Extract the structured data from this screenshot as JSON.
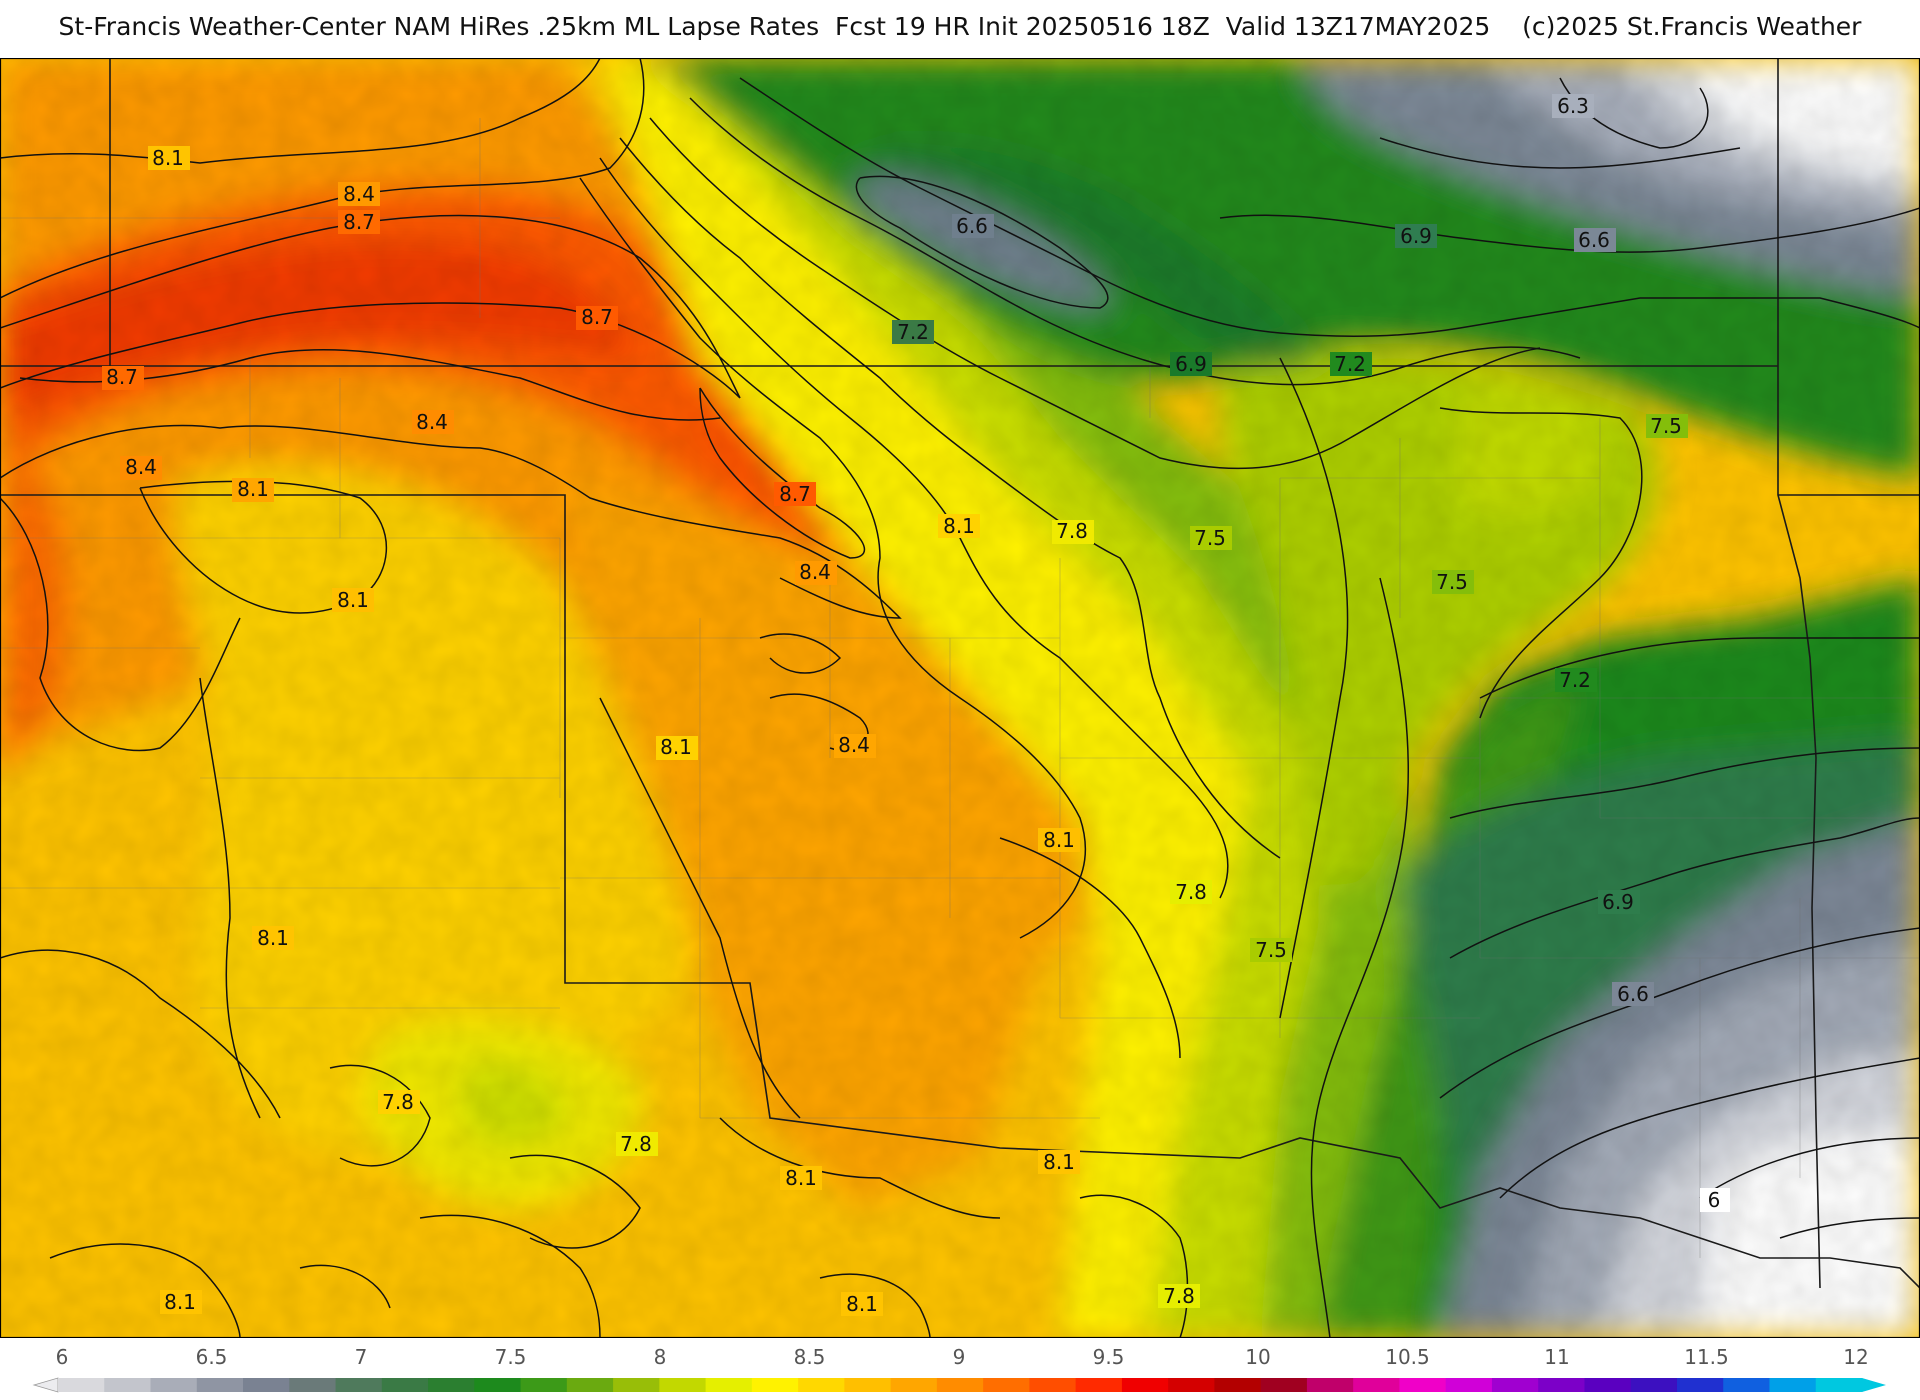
{
  "title": "St-Francis Weather-Center NAM HiRes .25km ML Lapse Rates  Fcst 19 HR Init 20250516 18Z  Valid 13Z17MAY2025    (c)2025 St.Francis Weather",
  "colors": {
    "background": "#ffffff",
    "contour_line": "#111111",
    "state_border": "#1a1a1a",
    "county_border": "#6e6e6e"
  },
  "map": {
    "field": "ML Lapse Rates",
    "units_hint": "C/km",
    "contour_labels": [
      {
        "text": "8.1"
      },
      {
        "text": "8.4"
      },
      {
        "text": "8.7"
      },
      {
        "text": "8.7"
      },
      {
        "text": "8.7"
      },
      {
        "text": "8.4"
      },
      {
        "text": "8.4"
      },
      {
        "text": "8.1"
      },
      {
        "text": "8.1"
      },
      {
        "text": "8.7"
      },
      {
        "text": "8.4"
      },
      {
        "text": "8.1"
      },
      {
        "text": "7.8"
      },
      {
        "text": "7.5"
      },
      {
        "text": "8.1"
      },
      {
        "text": "8.4"
      },
      {
        "text": "8.1"
      },
      {
        "text": "7.8"
      },
      {
        "text": "7.5"
      },
      {
        "text": "8.1"
      },
      {
        "text": "7.8"
      },
      {
        "text": "7.8"
      },
      {
        "text": "8.1"
      },
      {
        "text": "8.1"
      },
      {
        "text": "8.1"
      },
      {
        "text": "8.1"
      },
      {
        "text": "7.8"
      },
      {
        "text": "7.5"
      },
      {
        "text": "7.2"
      },
      {
        "text": "7.5"
      },
      {
        "text": "6.9"
      },
      {
        "text": "6.6"
      },
      {
        "text": "6"
      },
      {
        "text": "6.6"
      },
      {
        "text": "7.2"
      },
      {
        "text": "6.9"
      },
      {
        "text": "7.2"
      },
      {
        "text": "6.9"
      },
      {
        "text": "6.6"
      },
      {
        "text": "6.3"
      }
    ]
  },
  "colorbar": {
    "ticks": [
      "6",
      "6.5",
      "7",
      "7.5",
      "8",
      "8.5",
      "9",
      "9.5",
      "10",
      "10.5",
      "11",
      "11.5",
      "12"
    ],
    "colors": [
      "#d9d9dd",
      "#c3c5cc",
      "#a9adb8",
      "#8f95a3",
      "#7a8292",
      "#6a7a79",
      "#4f7a5c",
      "#3a7a45",
      "#2b7f30",
      "#1d8a1d",
      "#3c9a18",
      "#6aaa10",
      "#98be08",
      "#c2d800",
      "#e5ef00",
      "#fff200",
      "#ffd800",
      "#ffbf00",
      "#ffa600",
      "#ff8c00",
      "#ff6e00",
      "#ff4e00",
      "#ff2a00",
      "#f00000",
      "#d40000",
      "#b30000",
      "#a00020",
      "#c0006a",
      "#e0009a",
      "#f000c8",
      "#d000d8",
      "#a000d0",
      "#7c00c8",
      "#5a00c0",
      "#3c10c0",
      "#2030d0",
      "#1060e0",
      "#00a0e8",
      "#00c8e0"
    ]
  }
}
